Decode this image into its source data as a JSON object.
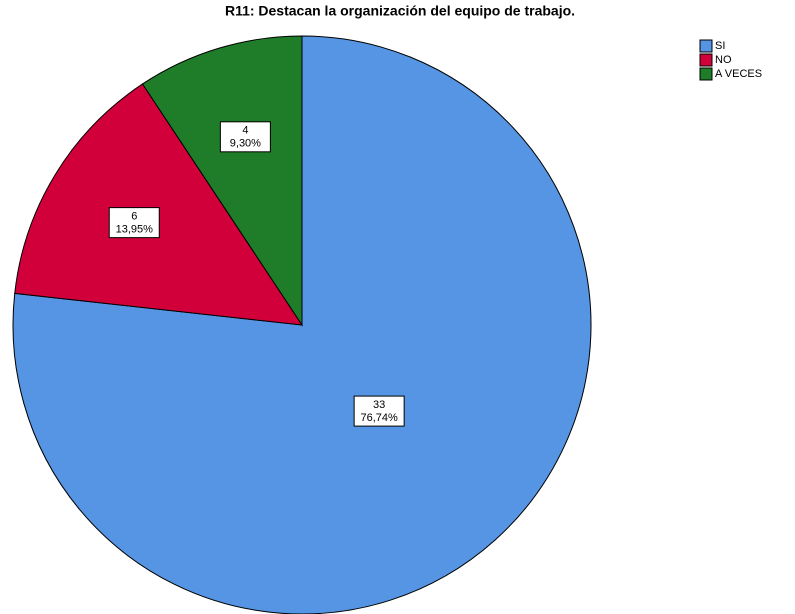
{
  "chart_data": {
    "type": "pie",
    "title": "R11: Destacan la organización del equipo de trabajo.",
    "categories": [
      "SI",
      "NO",
      "A VECES"
    ],
    "values": [
      33,
      6,
      4
    ],
    "percentages": [
      76.74,
      13.95,
      9.3
    ],
    "percentage_labels": [
      "76,74%",
      "13,95%",
      "9,30%"
    ],
    "colors": [
      "#5595e3",
      "#d2003a",
      "#1f7c29"
    ],
    "legend": "top-right"
  }
}
